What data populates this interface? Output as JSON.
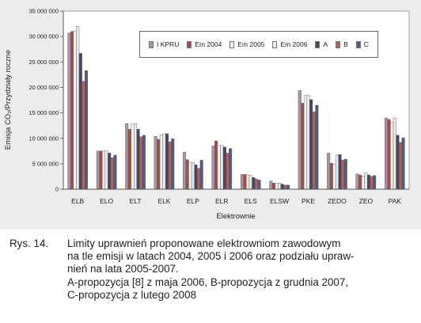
{
  "chart_data": {
    "type": "bar",
    "title": "",
    "xlabel": "Elektrownie",
    "ylabel": "Emisja CO₂/Przydziały roczne",
    "ylim": [
      0,
      35000000
    ],
    "yticks": [
      0,
      5000000,
      10000000,
      15000000,
      20000000,
      25000000,
      30000000,
      35000000
    ],
    "ytick_labels": [
      "0",
      "5 000 000",
      "10 000 000",
      "15 000 000",
      "20 000 000",
      "25 000 000",
      "30 000 000",
      "35 000 000"
    ],
    "grid": false,
    "legend_position": "top-center",
    "categories": [
      "ELB",
      "ELO",
      "ELT",
      "ELK",
      "ELP",
      "ELR",
      "ELS",
      "ELSW",
      "PKE",
      "ZEDO",
      "ZEO",
      "PAK"
    ],
    "series": [
      {
        "name": "I KPRU",
        "color": "#a695a6",
        "values": [
          30700000,
          7500000,
          12900000,
          10400000,
          7300000,
          8500000,
          2900000,
          1600000,
          19400000,
          7100000,
          3000000,
          14000000
        ]
      },
      {
        "name": "Em 2004",
        "color": "#a0504a",
        "values": [
          31000000,
          7500000,
          11800000,
          9800000,
          5800000,
          9500000,
          2900000,
          1200000,
          16900000,
          5100000,
          2800000,
          13700000
        ]
      },
      {
        "name": "Em 2005",
        "color": "#f4f4ee",
        "values": [
          31100000,
          7500000,
          12800000,
          10700000,
          5300000,
          8600000,
          2800000,
          1200000,
          18400000,
          4900000,
          2600000,
          13100000
        ]
      },
      {
        "name": "Em 2006",
        "color": "#e8eaf2",
        "values": [
          32000000,
          7500000,
          12900000,
          10900000,
          5200000,
          8600000,
          2700000,
          1200000,
          18500000,
          6700000,
          3200000,
          14000000
        ]
      },
      {
        "name": "A",
        "color": "#4a4560",
        "values": [
          26700000,
          7100000,
          11800000,
          10900000,
          4800000,
          8300000,
          2300000,
          1000000,
          17600000,
          6800000,
          2800000,
          10600000
        ]
      },
      {
        "name": "B",
        "color": "#b0625a",
        "values": [
          21200000,
          6200000,
          10300000,
          9300000,
          4100000,
          7100000,
          2000000,
          800000,
          15200000,
          5700000,
          2500000,
          9200000
        ]
      },
      {
        "name": "C",
        "color": "#4f5d80",
        "values": [
          23300000,
          6700000,
          10600000,
          9900000,
          5700000,
          8000000,
          1800000,
          800000,
          16500000,
          5900000,
          2700000,
          10100000
        ]
      }
    ]
  },
  "caption": {
    "label": "Rys. 14.",
    "lines": [
      "Limity uprawnień proponowane elektrowniom zawodowym",
      "na tle emisji w latach 2004, 2005 i 2006 oraz podziału upraw-",
      "nień na lata 2005-2007.",
      "A-propozycja [8] z maja 2006, B-propozycja z grudnia 2007,",
      "C-propozycja z lutego 2008"
    ]
  }
}
